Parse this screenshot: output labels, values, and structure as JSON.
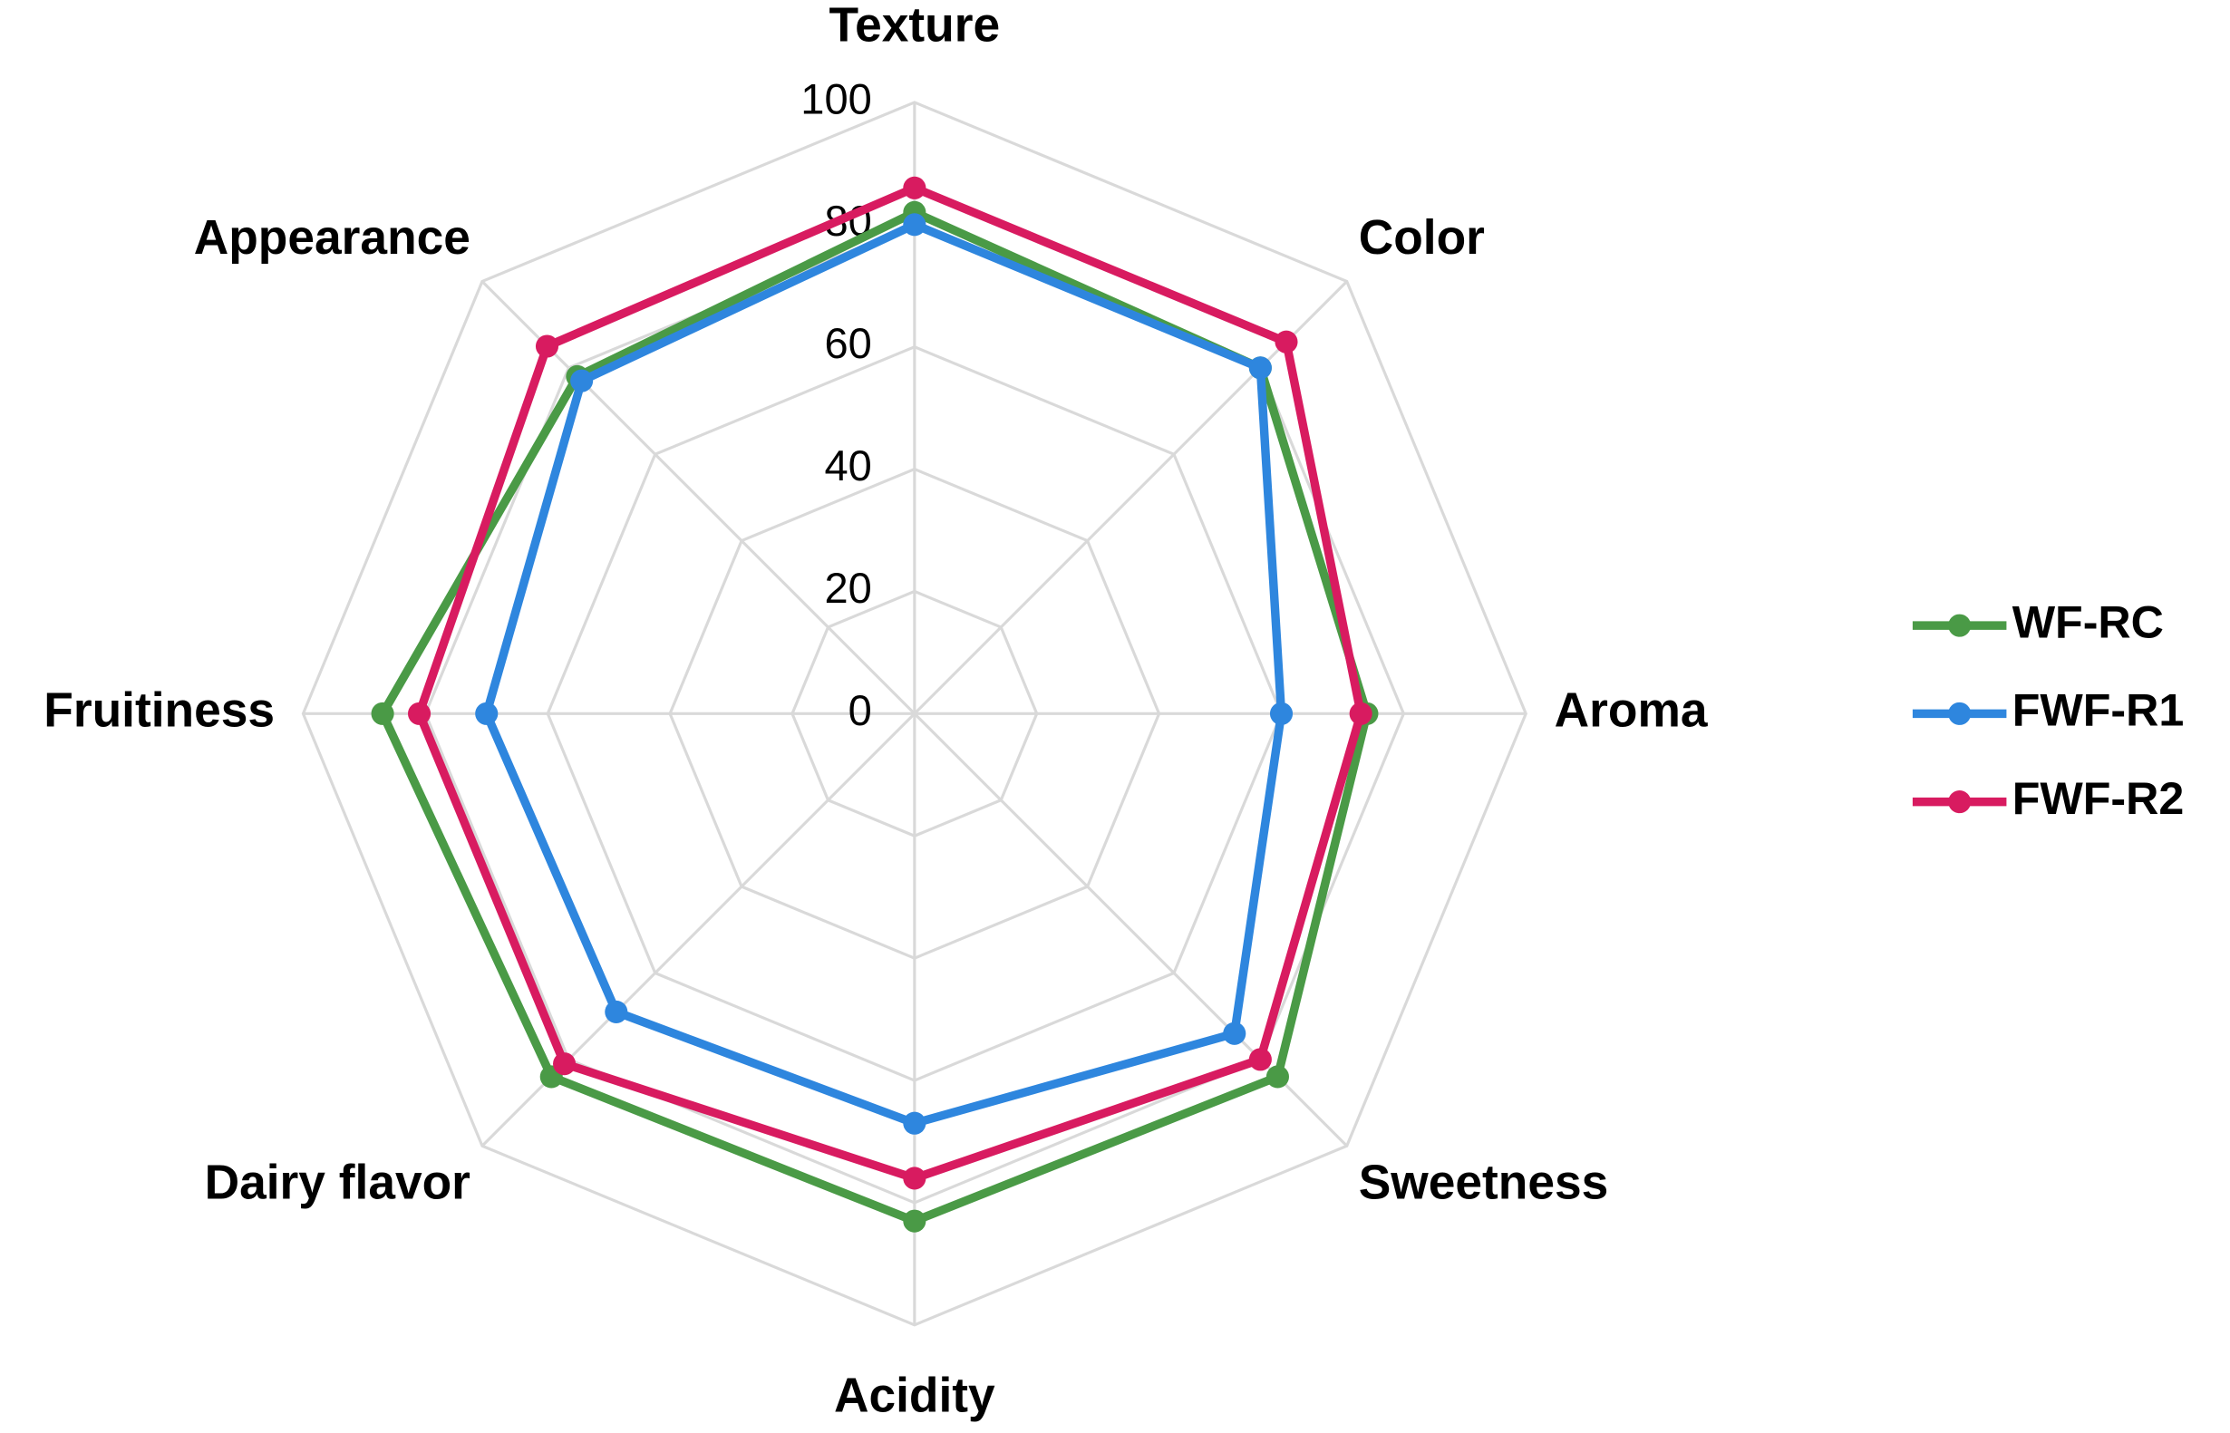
{
  "chart_data": {
    "type": "radar",
    "categories": [
      "Texture",
      "Color",
      "Aroma",
      "Sweetness",
      "Acidity",
      "Dairy flavor",
      "Fruitiness",
      "Appearance"
    ],
    "series": [
      {
        "name": "WF-RC",
        "color": "#4a9a46",
        "values": [
          82,
          80,
          74,
          84,
          83,
          84,
          87,
          78
        ]
      },
      {
        "name": "FWF-R1",
        "color": "#2e86de",
        "values": [
          80,
          80,
          60,
          74,
          67,
          69,
          70,
          77
        ]
      },
      {
        "name": "FWF-R2",
        "color": "#d81b60",
        "values": [
          86,
          86,
          73,
          80,
          76,
          81,
          81,
          85
        ]
      }
    ],
    "rlim": [
      0,
      100
    ],
    "rticks": [
      0,
      20,
      40,
      60,
      80,
      100
    ],
    "grid": true,
    "legend": "right"
  }
}
